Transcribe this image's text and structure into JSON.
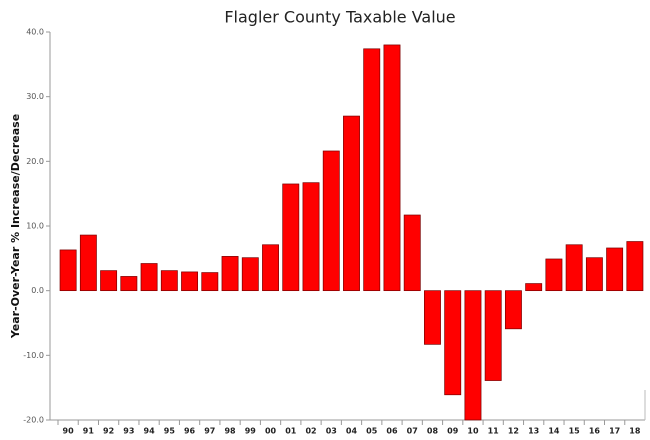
{
  "chart_data": {
    "type": "bar",
    "title": "Flagler County Taxable Value",
    "ylabel": "Year-Over-Year % Increase/Decrease",
    "categories": [
      "90",
      "91",
      "92",
      "93",
      "94",
      "95",
      "96",
      "97",
      "98",
      "99",
      "00",
      "01",
      "02",
      "03",
      "04",
      "05",
      "06",
      "07",
      "08",
      "09",
      "10",
      "11",
      "12",
      "13",
      "14",
      "15",
      "16",
      "17",
      "18"
    ],
    "values": [
      6.3,
      8.6,
      3.1,
      2.2,
      4.2,
      3.1,
      2.9,
      2.8,
      5.3,
      5.1,
      7.1,
      16.5,
      16.7,
      21.6,
      27.0,
      37.4,
      38.0,
      11.7,
      -8.3,
      -16.1,
      -20.0,
      -13.9,
      -5.9,
      1.1,
      4.9,
      7.1,
      5.1,
      6.6,
      7.6
    ],
    "color": "#ff0000",
    "ylim": [
      -20,
      40
    ],
    "yticks": [
      {
        "value": -20,
        "label": "-20.0"
      },
      {
        "value": -10,
        "label": "-10.0"
      },
      {
        "value": 0,
        "label": "0.0"
      },
      {
        "value": 10,
        "label": "10.0"
      },
      {
        "value": 20,
        "label": "20.0"
      },
      {
        "value": 30,
        "label": "30.0"
      },
      {
        "value": 40,
        "label": "40.0"
      }
    ],
    "grid": false
  }
}
